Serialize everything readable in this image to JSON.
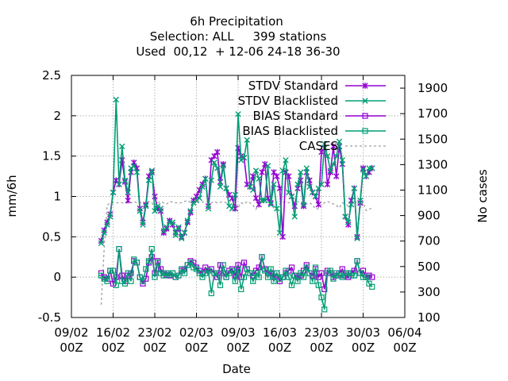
{
  "chart_data": {
    "type": "line",
    "title_lines": [
      "6h Precipitation",
      "Selection: ALL     399 stations",
      "Used  00,12  + 12-06 24-18 36-30"
    ],
    "xlabel": "Date",
    "ylabel": "mm/6h",
    "y2label": "No cases",
    "x_tick_labels": [
      {
        "day": 0,
        "line1": "09/02",
        "line2": "00Z"
      },
      {
        "day": 7,
        "line1": "16/02",
        "line2": "00Z"
      },
      {
        "day": 14,
        "line1": "23/02",
        "line2": "00Z"
      },
      {
        "day": 21,
        "line1": "02/03",
        "line2": "00Z"
      },
      {
        "day": 28,
        "line1": "09/03",
        "line2": "00Z"
      },
      {
        "day": 35,
        "line1": "16/03",
        "line2": "00Z"
      },
      {
        "day": 42,
        "line1": "23/03",
        "line2": "00Z"
      },
      {
        "day": 49,
        "line1": "30/03",
        "line2": "00Z"
      },
      {
        "day": 56,
        "line1": "06/04",
        "line2": "00Z"
      }
    ],
    "xlim": [
      0,
      56
    ],
    "ylim": [
      -0.5,
      2.5
    ],
    "y_ticks": [
      "-0.5",
      "0",
      "0.5",
      "1",
      "1.5",
      "2",
      "2.5"
    ],
    "y2lim": [
      100,
      2000
    ],
    "y2_ticks": [
      "100",
      "300",
      "500",
      "700",
      "900",
      "1100",
      "1300",
      "1500",
      "1700",
      "1900"
    ],
    "grid": true,
    "legend_position": "top-right",
    "series": [
      {
        "name": "STDV Standard",
        "color": "#9400d3",
        "marker": "star",
        "axis": "y1",
        "x": [
          5.0,
          5.5,
          6.0,
          6.5,
          7.0,
          7.5,
          8.0,
          8.5,
          9.0,
          9.5,
          10.0,
          10.5,
          11.0,
          11.5,
          12.0,
          12.5,
          13.0,
          13.5,
          14.0,
          14.5,
          15.0,
          15.5,
          16.0,
          16.5,
          17.0,
          17.5,
          18.0,
          18.5,
          19.0,
          19.5,
          20.0,
          20.5,
          21.0,
          21.5,
          22.0,
          22.5,
          23.0,
          23.5,
          24.0,
          24.5,
          25.0,
          25.5,
          26.0,
          26.5,
          27.0,
          27.5,
          28.0,
          28.5,
          29.0,
          29.5,
          30.0,
          30.5,
          31.0,
          31.5,
          32.0,
          32.5,
          33.0,
          33.5,
          34.0,
          34.5,
          35.0,
          35.5,
          36.0,
          36.5,
          37.0,
          37.5,
          38.0,
          38.5,
          39.0,
          39.5,
          40.0,
          40.5,
          41.0,
          41.5,
          42.0,
          42.5,
          43.0,
          43.5,
          44.0,
          44.5,
          45.0,
          45.5,
          46.0,
          46.5,
          47.0,
          47.5,
          48.0,
          48.5,
          49.0,
          49.5,
          50.0,
          50.5
        ],
        "values": [
          0.45,
          0.58,
          0.68,
          0.78,
          1.05,
          1.2,
          1.15,
          1.45,
          1.18,
          0.95,
          1.3,
          1.42,
          1.35,
          0.85,
          0.68,
          0.9,
          1.25,
          1.3,
          1.0,
          0.85,
          0.82,
          0.55,
          0.6,
          0.7,
          0.65,
          0.55,
          0.6,
          0.5,
          0.55,
          0.68,
          0.8,
          0.95,
          1.0,
          1.08,
          1.15,
          1.22,
          0.88,
          1.45,
          1.5,
          1.55,
          1.18,
          1.4,
          1.1,
          1.02,
          0.98,
          0.85,
          1.6,
          1.5,
          1.48,
          1.15,
          1.12,
          1.25,
          0.98,
          0.9,
          1.3,
          1.4,
          0.98,
          0.92,
          1.3,
          1.25,
          1.1,
          0.5,
          1.3,
          1.25,
          1.0,
          0.88,
          1.1,
          1.2,
          0.88,
          1.3,
          1.2,
          1.05,
          1.0,
          0.9,
          1.55,
          1.6,
          1.15,
          1.3,
          1.62,
          1.25,
          1.62,
          1.4,
          0.75,
          0.65,
          0.95,
          1.1,
          0.5,
          0.92,
          1.35,
          1.25,
          1.3,
          1.35
        ]
      },
      {
        "name": "STDV Blacklisted",
        "color": "#009e73",
        "marker": "x",
        "axis": "y1",
        "x": [
          5.0,
          5.5,
          6.0,
          6.5,
          7.0,
          7.5,
          8.0,
          8.5,
          9.0,
          9.5,
          10.0,
          10.5,
          11.0,
          11.5,
          12.0,
          12.5,
          13.0,
          13.5,
          14.0,
          14.5,
          15.0,
          15.5,
          16.0,
          16.5,
          17.0,
          17.5,
          18.0,
          18.5,
          19.0,
          19.5,
          20.0,
          20.5,
          21.0,
          21.5,
          22.0,
          22.5,
          23.0,
          23.5,
          24.0,
          24.5,
          25.0,
          25.5,
          26.0,
          26.5,
          27.0,
          27.5,
          28.0,
          28.5,
          29.0,
          29.5,
          30.0,
          30.5,
          31.0,
          31.5,
          32.0,
          32.5,
          33.0,
          33.5,
          34.0,
          34.5,
          35.0,
          35.5,
          36.0,
          36.5,
          37.0,
          37.5,
          38.0,
          38.5,
          39.0,
          39.5,
          40.0,
          40.5,
          41.0,
          41.5,
          42.0,
          42.5,
          43.0,
          43.5,
          44.0,
          44.5,
          45.0,
          45.5,
          46.0,
          46.5,
          47.0,
          47.5,
          48.0,
          48.5,
          49.0,
          49.5,
          50.0,
          50.5
        ],
        "values": [
          0.42,
          0.55,
          0.65,
          0.75,
          1.05,
          2.2,
          1.15,
          1.62,
          1.2,
          1.05,
          1.35,
          1.38,
          1.3,
          0.82,
          0.65,
          0.88,
          1.2,
          1.32,
          0.82,
          0.88,
          0.85,
          0.57,
          0.62,
          0.68,
          0.68,
          0.52,
          0.62,
          0.48,
          0.55,
          0.7,
          0.82,
          0.92,
          0.95,
          0.98,
          1.12,
          1.22,
          0.85,
          1.2,
          1.42,
          1.35,
          1.12,
          1.38,
          1.1,
          0.88,
          0.85,
          1.02,
          2.02,
          1.45,
          1.48,
          1.7,
          1.12,
          1.08,
          1.32,
          1.22,
          0.95,
          0.95,
          1.38,
          0.9,
          1.15,
          0.85,
          0.55,
          1.32,
          1.45,
          1.05,
          1.0,
          0.75,
          1.15,
          1.3,
          0.9,
          1.35,
          1.12,
          1.05,
          1.0,
          1.1,
          1.15,
          1.65,
          1.5,
          1.32,
          1.4,
          1.5,
          1.68,
          1.45,
          0.75,
          0.68,
          0.9,
          1.1,
          0.48,
          0.95,
          1.33,
          1.25,
          1.35,
          1.35
        ]
      },
      {
        "name": "BIAS Standard",
        "color": "#9400d3",
        "marker": "square",
        "axis": "y1",
        "x": [
          5.0,
          5.5,
          6.0,
          6.5,
          7.0,
          7.5,
          8.0,
          8.5,
          9.0,
          9.5,
          10.0,
          10.5,
          11.0,
          11.5,
          12.0,
          12.5,
          13.0,
          13.5,
          14.0,
          14.5,
          15.0,
          15.5,
          16.0,
          16.5,
          17.0,
          17.5,
          18.0,
          18.5,
          19.0,
          19.5,
          20.0,
          20.5,
          21.0,
          21.5,
          22.0,
          22.5,
          23.0,
          23.5,
          24.0,
          24.5,
          25.0,
          25.5,
          26.0,
          26.5,
          27.0,
          27.5,
          28.0,
          28.5,
          29.0,
          29.5,
          30.0,
          30.5,
          31.0,
          31.5,
          32.0,
          32.5,
          33.0,
          33.5,
          34.0,
          34.5,
          35.0,
          35.5,
          36.0,
          36.5,
          37.0,
          37.5,
          38.0,
          38.5,
          39.0,
          39.5,
          40.0,
          40.5,
          41.0,
          41.5,
          42.0,
          42.5,
          43.0,
          43.5,
          44.0,
          44.5,
          45.0,
          45.5,
          46.0,
          46.5,
          47.0,
          47.5,
          48.0,
          48.5,
          49.0,
          49.5,
          50.0,
          50.5
        ],
        "values": [
          0.05,
          0.0,
          -0.02,
          0.08,
          -0.08,
          0.0,
          0.35,
          0.02,
          -0.05,
          0.02,
          0.05,
          0.2,
          0.18,
          0.0,
          -0.08,
          -0.02,
          0.18,
          0.25,
          0.05,
          0.2,
          0.1,
          0.05,
          0.03,
          0.02,
          0.05,
          0.0,
          0.02,
          0.08,
          0.1,
          0.15,
          0.2,
          0.18,
          0.12,
          0.08,
          0.05,
          0.12,
          0.08,
          0.1,
          0.05,
          0.0,
          0.15,
          0.05,
          0.0,
          0.08,
          0.1,
          0.02,
          0.15,
          0.0,
          0.18,
          0.1,
          0.05,
          0.02,
          0.08,
          0.12,
          0.25,
          0.1,
          0.05,
          0.05,
          0.0,
          0.05,
          -0.05,
          0.0,
          0.05,
          0.08,
          0.12,
          0.02,
          0.0,
          0.02,
          0.08,
          0.15,
          0.05,
          0.02,
          0.1,
          0.0,
          0.05,
          -0.15,
          0.08,
          0.05,
          0.0,
          0.02,
          0.05,
          0.1,
          0.02,
          0.0,
          0.05,
          0.08,
          0.2,
          0.05,
          0.08,
          0.0,
          0.02,
          0.0
        ]
      },
      {
        "name": "BIAS Blacklisted",
        "color": "#009e73",
        "marker": "square",
        "axis": "y1",
        "x": [
          5.0,
          5.5,
          6.0,
          6.5,
          7.0,
          7.5,
          8.0,
          8.5,
          9.0,
          9.5,
          10.0,
          10.5,
          11.0,
          11.5,
          12.0,
          12.5,
          13.0,
          13.5,
          14.0,
          14.5,
          15.0,
          15.5,
          16.0,
          16.5,
          17.0,
          17.5,
          18.0,
          18.5,
          19.0,
          19.5,
          20.0,
          20.5,
          21.0,
          21.5,
          22.0,
          22.5,
          23.0,
          23.5,
          24.0,
          24.5,
          25.0,
          25.5,
          26.0,
          26.5,
          27.0,
          27.5,
          28.0,
          28.5,
          29.0,
          29.5,
          30.0,
          30.5,
          31.0,
          31.5,
          32.0,
          32.5,
          33.0,
          33.5,
          34.0,
          34.5,
          35.0,
          35.5,
          36.0,
          36.5,
          37.0,
          37.5,
          38.0,
          38.5,
          39.0,
          39.5,
          40.0,
          40.5,
          41.0,
          41.5,
          42.0,
          42.5,
          43.0,
          43.5,
          44.0,
          44.5,
          45.0,
          45.5,
          46.0,
          46.5,
          47.0,
          47.5,
          48.0,
          48.5,
          49.0,
          49.5,
          50.0,
          50.5
        ],
        "values": [
          0.02,
          -0.02,
          -0.05,
          0.08,
          0.08,
          -0.1,
          0.35,
          -0.05,
          -0.08,
          0.05,
          -0.05,
          0.22,
          0.18,
          0.0,
          -0.05,
          0.1,
          0.2,
          0.35,
          0.0,
          0.18,
          0.05,
          0.02,
          0.05,
          0.03,
          0.05,
          0.0,
          0.02,
          0.1,
          0.05,
          0.15,
          0.18,
          0.12,
          0.1,
          0.05,
          0.0,
          0.05,
          0.08,
          -0.2,
          0.05,
          0.05,
          -0.1,
          0.15,
          0.0,
          0.05,
          0.08,
          -0.05,
          0.1,
          -0.15,
          0.0,
          0.1,
          0.05,
          -0.05,
          0.05,
          0.0,
          0.25,
          0.08,
          0.0,
          0.1,
          -0.05,
          0.05,
          -0.02,
          0.0,
          0.08,
          0.0,
          -0.1,
          0.02,
          -0.05,
          0.05,
          0.0,
          0.12,
          0.05,
          -0.05,
          0.12,
          -0.1,
          -0.25,
          -0.4,
          0.05,
          0.08,
          -0.02,
          0.05,
          0.02,
          0.0,
          0.05,
          0.05,
          0.02,
          0.02,
          0.2,
          0.05,
          0.0,
          0.0,
          -0.08,
          -0.12
        ]
      },
      {
        "name": "CASES",
        "color": "#a0a0a0",
        "marker": "none",
        "axis": "y2",
        "dashed": true,
        "x": [
          5.0,
          5.5,
          6.0,
          6.5,
          7.0,
          7.5,
          8.0,
          8.5,
          9.0,
          9.5,
          10.0,
          10.5,
          11.0,
          11.5,
          12.0,
          12.5,
          13.0,
          13.5,
          14.0,
          14.5,
          15.0,
          15.5,
          16.0,
          16.5,
          17.0,
          17.5,
          18.0,
          18.5,
          19.0,
          19.5,
          20.0,
          20.5,
          21.0,
          21.5,
          22.0,
          22.5,
          23.0,
          23.5,
          24.0,
          24.5,
          25.0,
          25.5,
          26.0,
          26.5,
          27.0,
          27.5,
          28.0,
          28.5,
          29.0,
          29.5,
          30.0,
          30.5,
          31.0,
          31.5,
          32.0,
          32.5,
          33.0,
          33.5,
          34.0,
          34.5,
          35.0,
          35.5,
          36.0,
          36.5,
          37.0,
          37.5,
          38.0,
          38.5,
          39.0,
          39.5,
          40.0,
          40.5,
          41.0,
          41.5,
          42.0,
          42.5,
          43.0,
          43.5,
          44.0,
          44.5,
          45.0,
          45.5,
          46.0,
          46.5,
          47.0,
          47.5,
          48.0,
          48.5,
          49.0,
          49.5,
          50.0,
          50.5
        ],
        "values": [
          200,
          650,
          980,
          1000,
          1000,
          1000,
          1000,
          1000,
          995,
          1005,
          1000,
          1010,
          1000,
          1005,
          990,
          1000,
          1010,
          1005,
          950,
          1000,
          1010,
          1000,
          990,
          1010,
          1005,
          1000,
          1000,
          1000,
          1010,
          1020,
          1000,
          1005,
          1010,
          1015,
          1005,
          1010,
          1005,
          1000,
          1010,
          1000,
          1005,
          1010,
          1000,
          1015,
          1010,
          1005,
          960,
          1000,
          990,
          1010,
          1000,
          980,
          950,
          1000,
          1010,
          1000,
          1005,
          990,
          960,
          1000,
          990,
          1000,
          1010,
          1000,
          1005,
          1000,
          1010,
          1000,
          1005,
          990,
          1000,
          985,
          950,
          955,
          990,
          1000,
          1010,
          1000,
          990,
          980,
          960,
          1000,
          990,
          975,
          995,
          1000,
          1010,
          960,
          1005,
          940,
          950,
          960
        ]
      }
    ]
  }
}
